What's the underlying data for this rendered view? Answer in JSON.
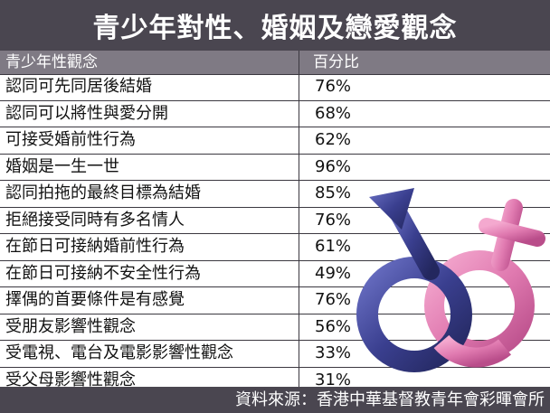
{
  "title": "青少年對性、婚姻及戀愛觀念",
  "table_header": {
    "col1": "青少年性觀念",
    "col2": "百分比"
  },
  "source": "資料來源：香港中華基督教青年會彩暉會所",
  "colors": {
    "bar": "#4a4650",
    "header": "#7f7a84",
    "male_symbol": "#3a3f8f",
    "female_symbol": "#e07ab0"
  },
  "icons": [
    "male-symbol-icon",
    "female-symbol-icon"
  ],
  "chart_data": {
    "type": "table",
    "title": "青少年對性、婚姻及戀愛觀念",
    "columns": [
      "青少年性觀念",
      "百分比"
    ],
    "rows": [
      {
        "category": "認同可先同居後結婚",
        "value": 76,
        "label": "76%"
      },
      {
        "category": "認同可以將性與愛分開",
        "value": 68,
        "label": "68%"
      },
      {
        "category": "可接受婚前性行為",
        "value": 62,
        "label": "62%"
      },
      {
        "category": "婚姻是一生一世",
        "value": 96,
        "label": "96%"
      },
      {
        "category": "認同拍拖的最終目標為結婚",
        "value": 85,
        "label": "85%"
      },
      {
        "category": "拒絕接受同時有多名情人",
        "value": 76,
        "label": "76%"
      },
      {
        "category": "在節日可接納婚前性行為",
        "value": 61,
        "label": "61%"
      },
      {
        "category": "在節日可接納不安全性行為",
        "value": 49,
        "label": "49%"
      },
      {
        "category": "擇偶的首要條件是有感覺",
        "value": 76,
        "label": "76%"
      },
      {
        "category": "受朋友影響性觀念",
        "value": 56,
        "label": "56%"
      },
      {
        "category": "受電視、電台及電影影響性觀念",
        "value": 33,
        "label": "33%"
      },
      {
        "category": "受父母影響性觀念",
        "value": 31,
        "label": "31%"
      }
    ]
  }
}
